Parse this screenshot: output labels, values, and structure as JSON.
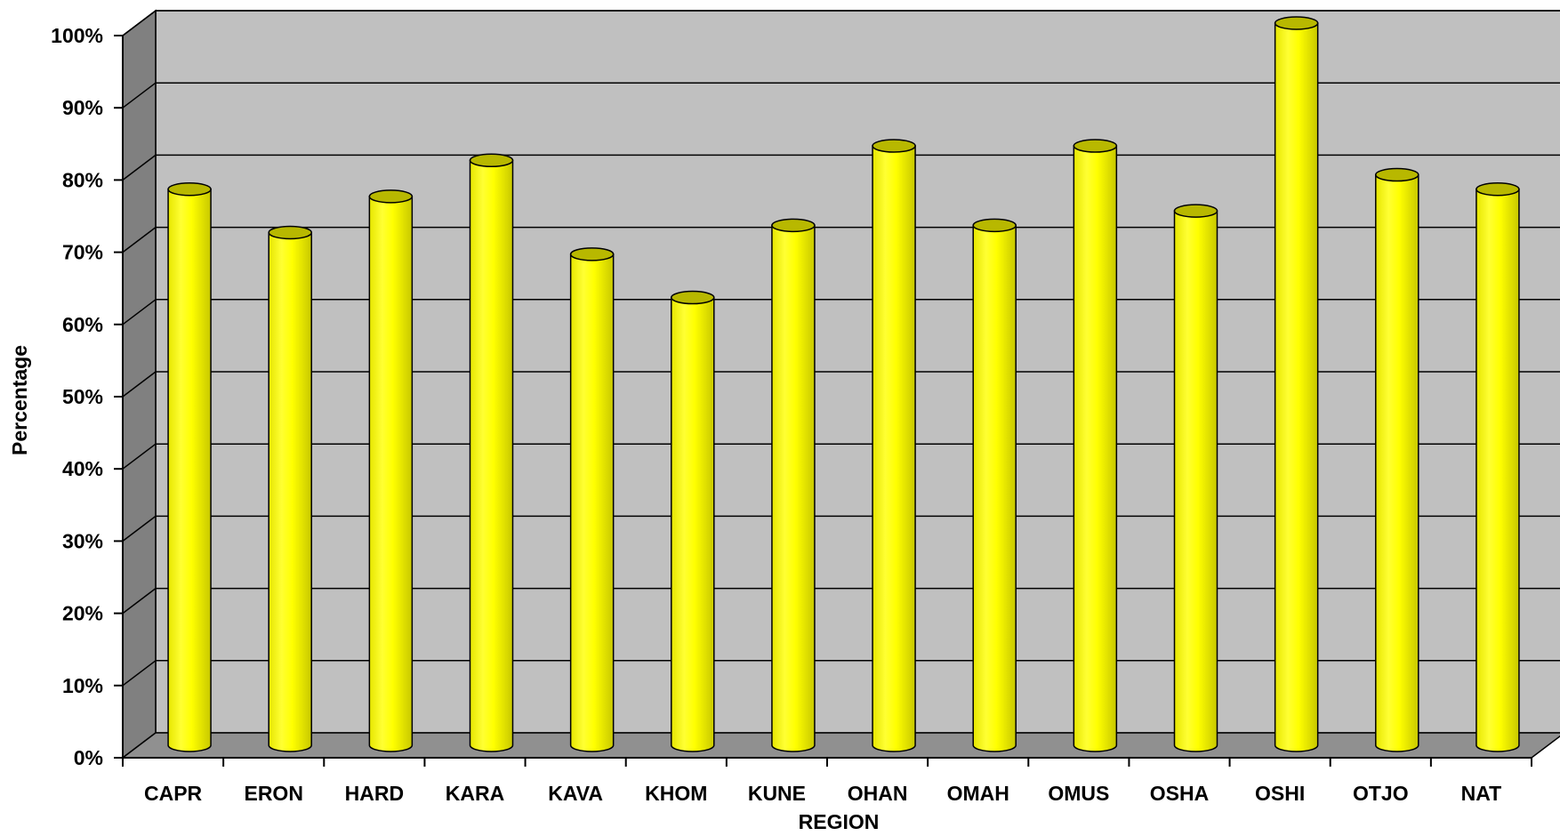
{
  "chart_data": {
    "type": "bar",
    "bar_style": "3d-cylinder",
    "title": "",
    "xlabel": "REGION",
    "ylabel": "Percentage",
    "categories": [
      "CAPR",
      "ERON",
      "HARD",
      "KARA",
      "KAVA",
      "KHOM",
      "KUNE",
      "OHAN",
      "OMAH",
      "OMUS",
      "OSHA",
      "OSHI",
      "OTJO",
      "NAT"
    ],
    "series": [
      {
        "values": [
          77,
          71,
          76,
          81,
          68,
          62,
          72,
          83,
          72,
          83,
          74,
          100,
          79,
          77
        ]
      }
    ],
    "ylim": [
      0,
      100
    ],
    "yticks": [
      "0%",
      "10%",
      "20%",
      "30%",
      "40%",
      "50%",
      "60%",
      "70%",
      "80%",
      "90%",
      "100%"
    ],
    "grid": true,
    "legend": "none",
    "colors": {
      "bar": "#ffff00",
      "bar_dark": "#b8b800",
      "wall": "#c0c0c0",
      "side_wall": "#808080",
      "floor": "#909090",
      "gridline": "#000000"
    }
  }
}
